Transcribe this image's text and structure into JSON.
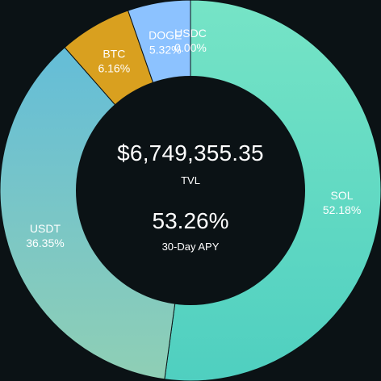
{
  "chart_data": {
    "type": "pie",
    "donut": true,
    "title": "",
    "slices": [
      {
        "name": "SOL",
        "label": "SOL",
        "value_label": "52.18%",
        "value": 52.18,
        "color_start": "#76e4c6",
        "color_end": "#4fcfc0"
      },
      {
        "name": "USDT",
        "label": "USDT",
        "value_label": "36.35%",
        "value": 36.35,
        "color_start": "#64bdd8",
        "color_end": "#8fcfb5"
      },
      {
        "name": "BTC",
        "label": "BTC",
        "value_label": "6.16%",
        "value": 6.16,
        "color_start": "#d9a01f",
        "color_end": "#d9a01f"
      },
      {
        "name": "DOGE",
        "label": "DOGE",
        "value_label": "5.32%",
        "value": 5.32,
        "color_start": "#8cc2ff",
        "color_end": "#8cc2ff"
      },
      {
        "name": "USDC",
        "label": "USDC",
        "value_label": "0.00%",
        "value": 0.0,
        "color_start": "#5ea0f0",
        "color_end": "#5ea0f0"
      }
    ]
  },
  "center": {
    "tvl_value": "$6,749,355.35",
    "tvl_label": "TVL",
    "apy_value": "53.26%",
    "apy_label": "30-Day APY"
  }
}
